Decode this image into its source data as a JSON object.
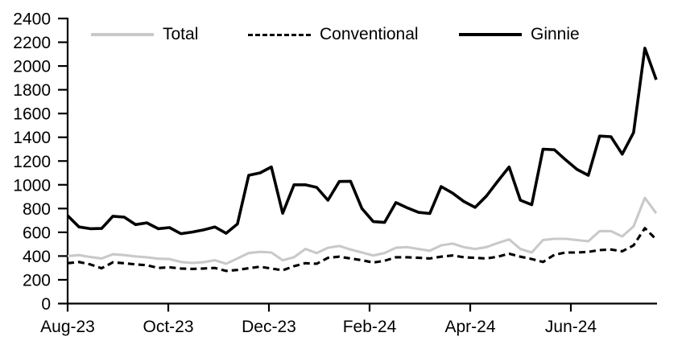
{
  "chart_data": {
    "type": "line",
    "title": "",
    "xlabel": "",
    "ylabel": "",
    "ylim": [
      0,
      2400
    ],
    "y_tick_step": 200,
    "y_ticks": [
      0,
      200,
      400,
      600,
      800,
      1000,
      1200,
      1400,
      1600,
      1800,
      2000,
      2200,
      2400
    ],
    "x_tick_labels": [
      "Aug-23",
      "Oct-23",
      "Dec-23",
      "Feb-24",
      "Apr-24",
      "Jun-24"
    ],
    "grid": false,
    "legend_position": "top",
    "frequency": "weekly",
    "series": [
      {
        "name": "Total",
        "color": "#c9c9c9",
        "style": "solid",
        "values": [
          400,
          408,
          392,
          380,
          415,
          408,
          397,
          390,
          378,
          375,
          350,
          342,
          348,
          365,
          335,
          380,
          425,
          435,
          430,
          365,
          390,
          460,
          425,
          470,
          485,
          455,
          430,
          405,
          425,
          470,
          475,
          460,
          445,
          490,
          505,
          475,
          460,
          475,
          510,
          540,
          460,
          430,
          535,
          545,
          545,
          535,
          525,
          610,
          610,
          565,
          650,
          890,
          760
        ]
      },
      {
        "name": "Conventional",
        "color": "#000000",
        "style": "dashed",
        "values": [
          340,
          350,
          330,
          297,
          347,
          340,
          330,
          323,
          300,
          305,
          295,
          292,
          295,
          300,
          275,
          283,
          298,
          310,
          295,
          280,
          315,
          340,
          335,
          385,
          395,
          380,
          365,
          345,
          360,
          390,
          390,
          385,
          380,
          395,
          405,
          390,
          385,
          380,
          395,
          420,
          395,
          375,
          350,
          410,
          430,
          430,
          435,
          450,
          455,
          440,
          490,
          635,
          540
        ]
      },
      {
        "name": "Ginnie",
        "color": "#000000",
        "style": "solid",
        "values": [
          740,
          645,
          630,
          632,
          735,
          728,
          665,
          680,
          630,
          640,
          588,
          602,
          620,
          645,
          592,
          670,
          1080,
          1100,
          1150,
          760,
          1000,
          1000,
          978,
          870,
          1028,
          1030,
          800,
          690,
          683,
          850,
          806,
          768,
          758,
          985,
          930,
          860,
          810,
          905,
          1030,
          1150,
          870,
          832,
          1300,
          1295,
          1210,
          1130,
          1080,
          1410,
          1405,
          1258,
          1440,
          2150,
          1885
        ]
      }
    ]
  }
}
